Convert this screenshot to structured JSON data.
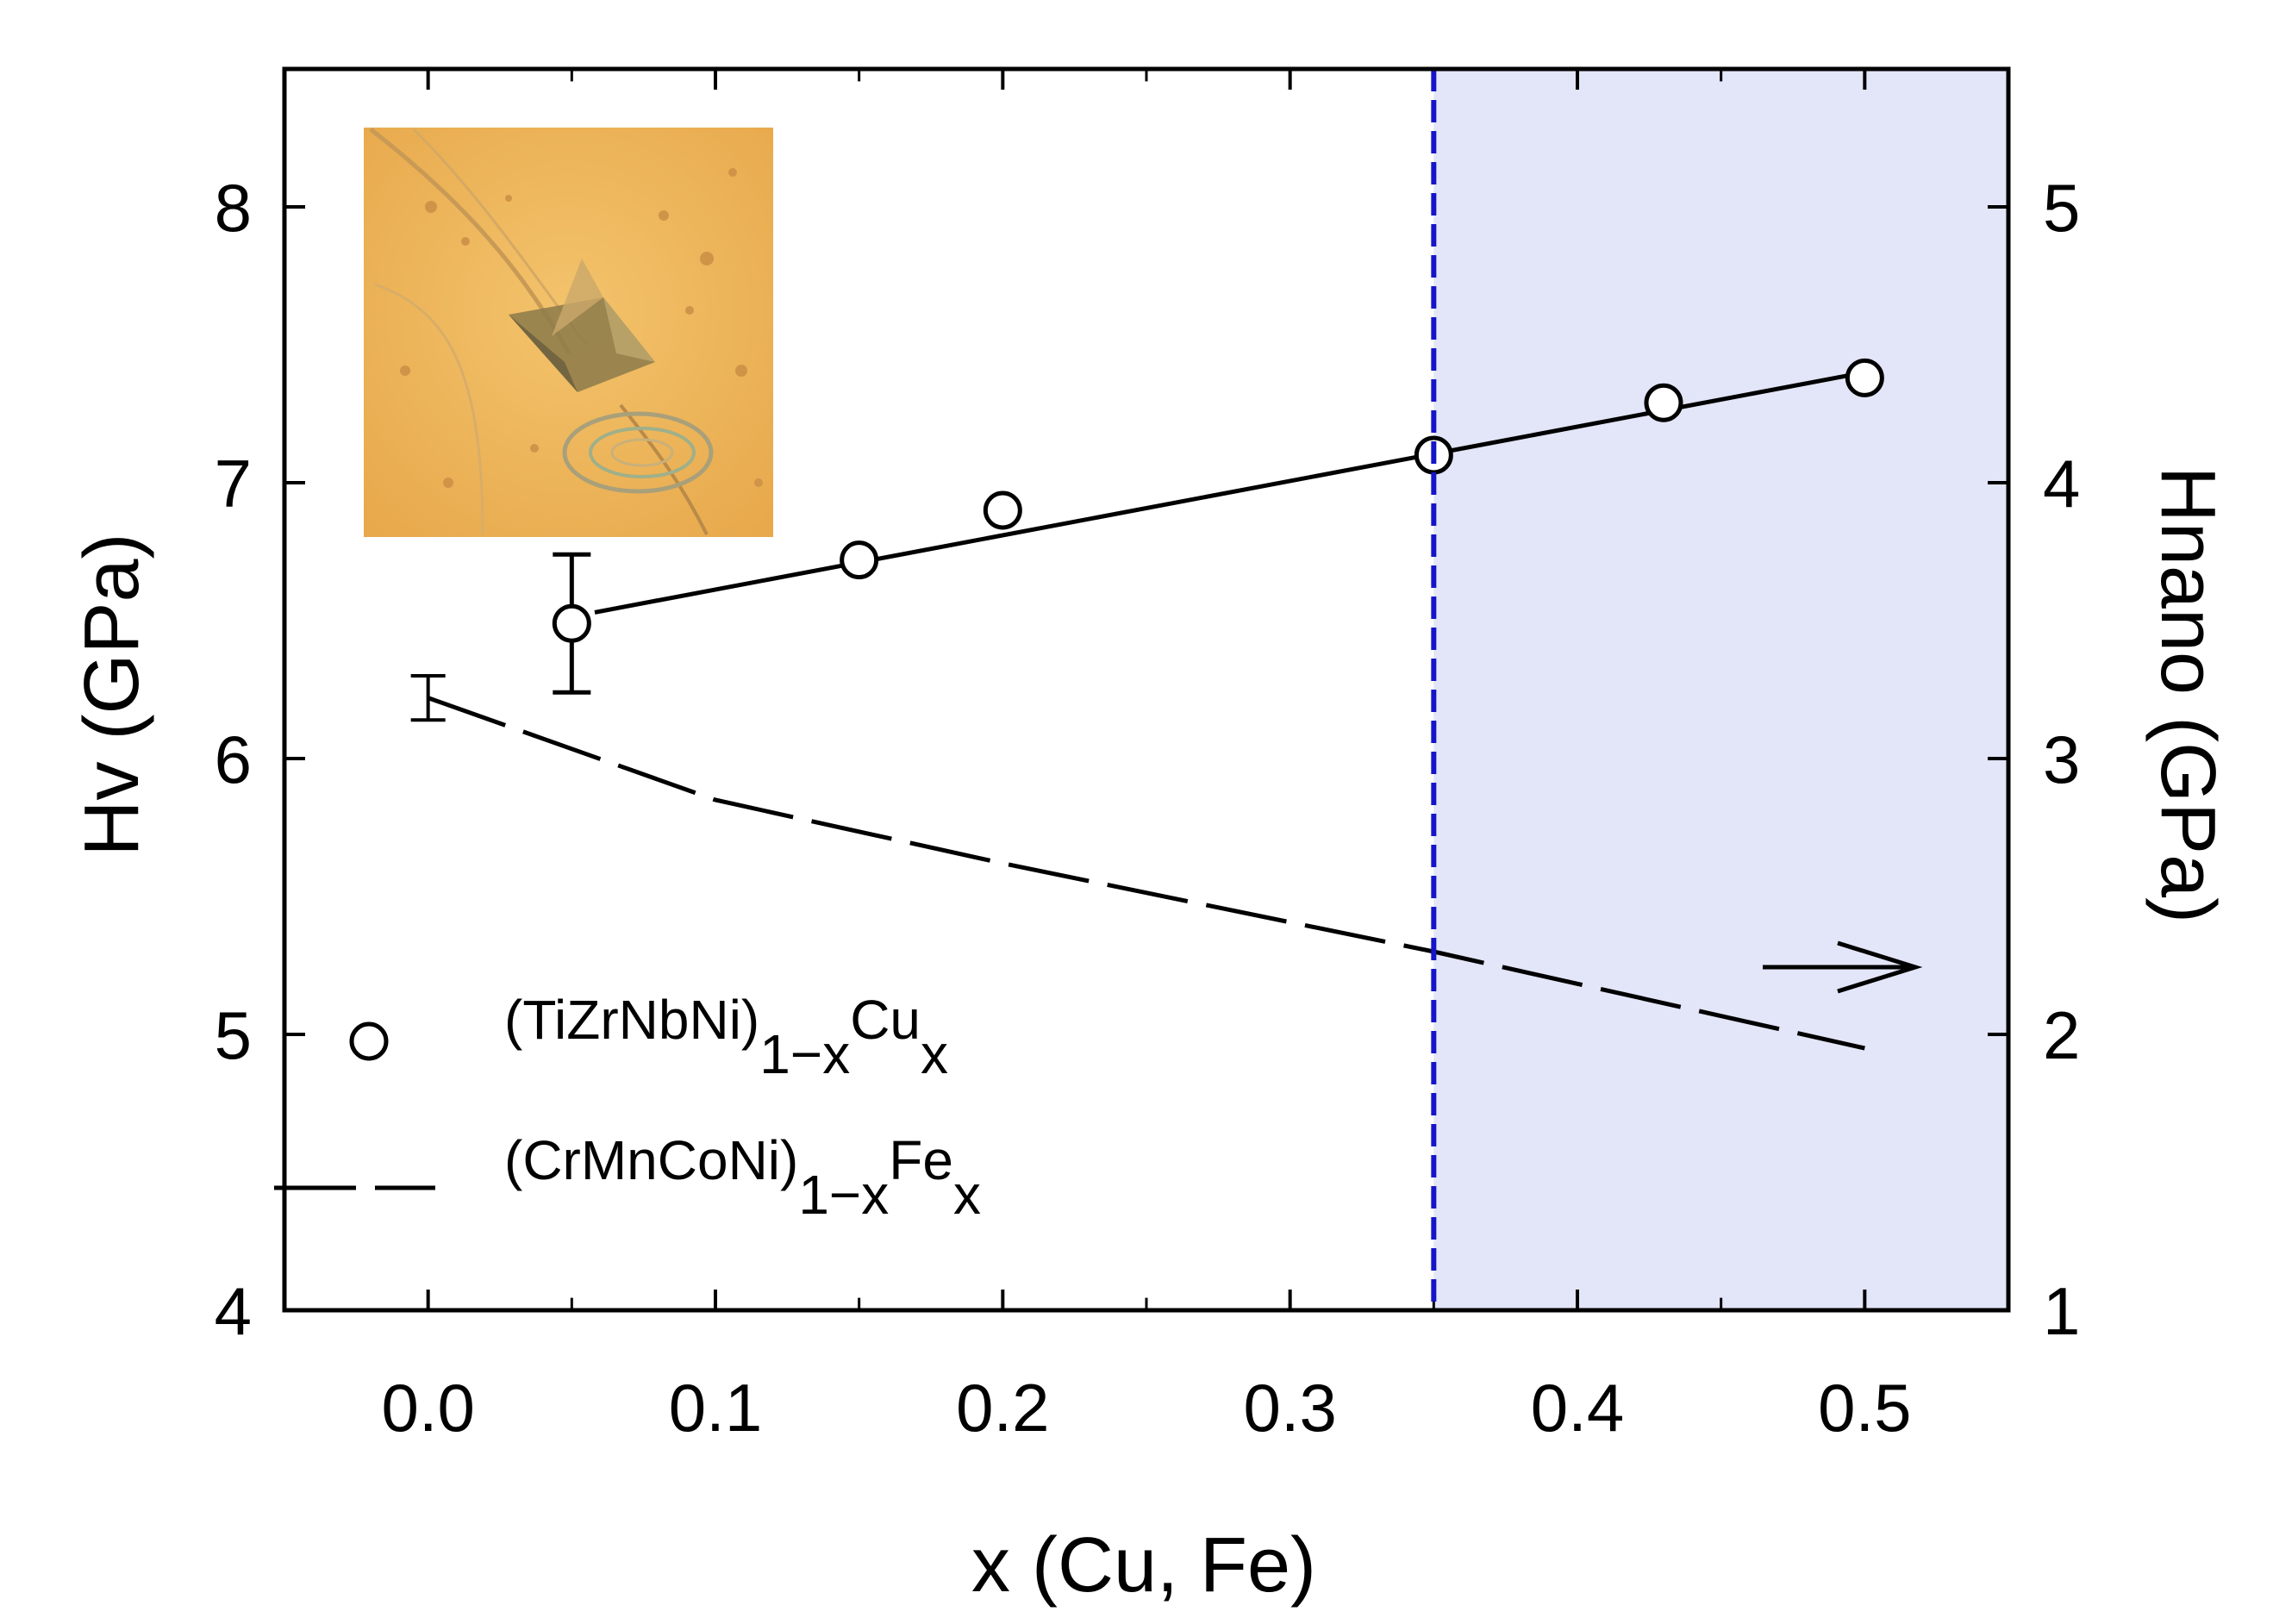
{
  "chart_data": {
    "type": "scatter",
    "xlabel": "x (Cu, Fe)",
    "ylabel": "Hv (GPa)",
    "y2label": "Hnano (GPa)",
    "xlim": [
      -0.05,
      0.55
    ],
    "ylim": [
      4,
      8.5
    ],
    "y2lim": [
      1,
      5.5
    ],
    "xticks": [
      0.0,
      0.1,
      0.2,
      0.3,
      0.4,
      0.5
    ],
    "xtick_labels": [
      "0.0",
      "0.1",
      "0.2",
      "0.3",
      "0.4",
      "0.5"
    ],
    "yticks": [
      4,
      5,
      6,
      7,
      8
    ],
    "ytick_labels": [
      "4",
      "5",
      "6",
      "7",
      "8"
    ],
    "y2ticks": [
      1,
      2,
      3,
      4,
      5
    ],
    "y2tick_labels": [
      "1",
      "2",
      "3",
      "4",
      "5"
    ],
    "threshold_x": 0.35,
    "threshold_color": "#1515c8",
    "shade_color": "#e3e5f8",
    "series": [
      {
        "name": "(TiZrNbNi)1-xCux",
        "legend_main": "(TiZrNbNi)",
        "legend_sub1": "1−x",
        "legend_elem": "Cu",
        "legend_sub2": "x",
        "axis": "left",
        "marker": "open-circle",
        "x": [
          0.05,
          0.15,
          0.2,
          0.35,
          0.43,
          0.5
        ],
        "y": [
          6.49,
          6.72,
          6.9,
          7.1,
          7.29,
          7.38
        ],
        "yerr": [
          0.25,
          0,
          0,
          0,
          0,
          0
        ],
        "fit_line": {
          "x": [
            0.058,
            0.5
          ],
          "y": [
            6.53,
            7.4
          ]
        }
      },
      {
        "name": "(CrMnCoNi)1-xFex",
        "legend_main": "(CrMnCoNi)",
        "legend_sub1": "1−x",
        "legend_elem": "Fe",
        "legend_sub2": "x",
        "axis": "right",
        "line_style": "dashed",
        "x": [
          0.0,
          0.1,
          0.2,
          0.35,
          0.5
        ],
        "y": [
          3.22,
          2.85,
          2.62,
          2.3,
          1.95
        ],
        "yerr": [
          0.08,
          0,
          0,
          0,
          0
        ]
      }
    ],
    "annotation": {
      "type": "arrow",
      "direction": "right",
      "meaning": "dashed series refers to right axis"
    },
    "inset": {
      "description": "optical micrograph of indentation"
    }
  }
}
